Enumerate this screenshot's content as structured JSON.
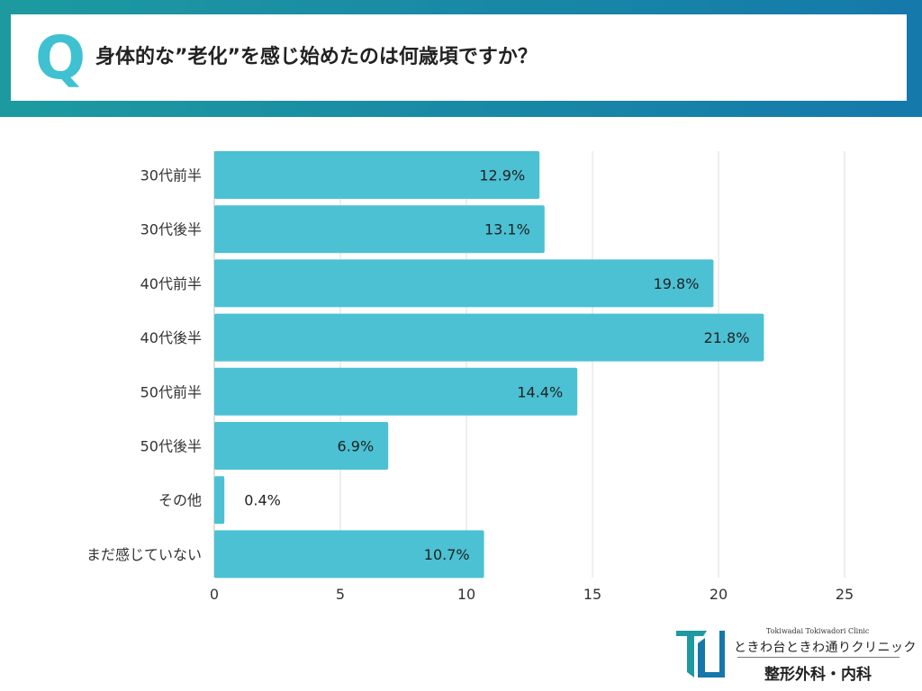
{
  "header": {
    "q_label": "Q",
    "question": "身体的な”老化”を感じ始めたのは何歳頃ですか？"
  },
  "chart_data": {
    "type": "bar",
    "orientation": "horizontal",
    "categories": [
      "30代前半",
      "30代後半",
      "40代前半",
      "40代後半",
      "50代前半",
      "50代後半",
      "その他",
      "まだ感じていない"
    ],
    "values": [
      12.9,
      13.1,
      19.8,
      21.8,
      14.4,
      6.9,
      0.4,
      10.7
    ],
    "value_labels": [
      "12.9%",
      "13.1%",
      "19.8%",
      "21.8%",
      "14.4%",
      "6.9%",
      "0.4%",
      "10.7%"
    ],
    "xlim": [
      0,
      25
    ],
    "xticks": [
      0,
      5,
      10,
      15,
      20,
      25
    ],
    "grid": true,
    "bar_color": "#4bc1d3"
  },
  "logo": {
    "name_en": "Tokiwadai Tokiwadori Clinic",
    "name_jp": "ときわ台ときわ通りクリニック",
    "departments": "整形外科・内科",
    "colors": [
      "#1e9aa0",
      "#1677aa"
    ]
  }
}
